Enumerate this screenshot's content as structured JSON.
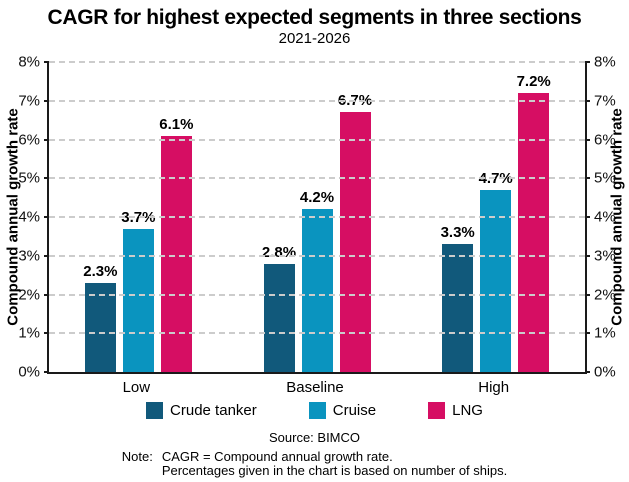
{
  "title": "CAGR for highest expected segments in three sections",
  "subtitle": "2021-2026",
  "colors": {
    "crude_tanker": "#11597B",
    "cruise": "#0A94BF",
    "lng": "#D60E63",
    "grid": "#CCCCCC",
    "axis": "#1A1A1A"
  },
  "chart_data": {
    "type": "bar",
    "categories": [
      "Low",
      "Baseline",
      "High"
    ],
    "series": [
      {
        "name": "Crude tanker",
        "color_key": "crude_tanker",
        "values": [
          2.3,
          2.8,
          3.3
        ],
        "labels": [
          "2.3%",
          "2.8%",
          "3.3%"
        ]
      },
      {
        "name": "Cruise",
        "color_key": "cruise",
        "values": [
          3.7,
          4.2,
          4.7
        ],
        "labels": [
          "3.7%",
          "4.2%",
          "4.7%"
        ]
      },
      {
        "name": "LNG",
        "color_key": "lng",
        "values": [
          6.1,
          6.7,
          7.2
        ],
        "labels": [
          "6.1%",
          "6.7%",
          "7.2%"
        ]
      }
    ],
    "ylabel_left": "Compound annual growth rate",
    "ylabel_right": "Compound annual growth rate",
    "ylim": [
      0,
      8
    ],
    "yticks": [
      "0%",
      "1%",
      "2%",
      "3%",
      "4%",
      "5%",
      "6%",
      "7%",
      "8%"
    ],
    "grid": "horizontal-dashed",
    "legend_position": "bottom"
  },
  "source": "Source: BIMCO",
  "note": {
    "label": "Note:",
    "line1": "CAGR = Compound annual growth rate.",
    "line2": "Percentages given in the chart is based on number of ships."
  }
}
